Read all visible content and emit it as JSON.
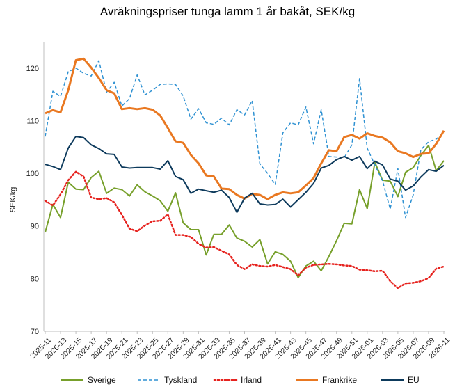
{
  "chart_data": {
    "type": "line",
    "title": "Avräkningspriser tunga lamm 1 år bakåt, SEK/kg",
    "ylabel": "SEK/kg",
    "xlabel": "",
    "ylim": [
      70,
      125
    ],
    "yticks": [
      70,
      80,
      90,
      100,
      110,
      120
    ],
    "grid": false,
    "legend_position": "bottom",
    "x": [
      "2025-11",
      "2025-12",
      "2025-13",
      "2025-14",
      "2025-15",
      "2025-16",
      "2025-17",
      "2025-18",
      "2025-19",
      "2025-20",
      "2025-21",
      "2025-22",
      "2025-23",
      "2025-24",
      "2025-25",
      "2025-26",
      "2025-27",
      "2025-28",
      "2025-29",
      "2025-30",
      "2025-31",
      "2025-32",
      "2025-33",
      "2025-34",
      "2025-35",
      "2025-36",
      "2025-37",
      "2025-38",
      "2025-39",
      "2025-40",
      "2025-41",
      "2025-42",
      "2025-43",
      "2025-44",
      "2025-45",
      "2025-46",
      "2025-47",
      "2025-48",
      "2025-49",
      "2025-50",
      "2025-51",
      "2025-52",
      "2026-01",
      "2026-02",
      "2026-03",
      "2026-04",
      "2026-05",
      "2026-06",
      "2026-07",
      "2026-08",
      "2026-09",
      "2026-10",
      "2026-11"
    ],
    "xtick_labels": [
      "2025-11",
      "2025-13",
      "2025-15",
      "2025-17",
      "2025-19",
      "2025-21",
      "2025-23",
      "2025-25",
      "2025-27",
      "2025-29",
      "2025-31",
      "2025-33",
      "2025-35",
      "2025-37",
      "2025-39",
      "2025-41",
      "2025-43",
      "2025-45",
      "2025-47",
      "2025-49",
      "2025-51",
      "2026-01",
      "2026-03",
      "2026-05",
      "2026-07",
      "2026-09",
      "2026-11"
    ],
    "series": [
      {
        "name": "Sverige",
        "color": "#77a02b",
        "style": "solid",
        "width": 2,
        "values": [
          88.8,
          94.1,
          91.6,
          98.3,
          97.0,
          96.9,
          99.2,
          100.4,
          96.2,
          97.2,
          96.9,
          95.7,
          97.8,
          96.5,
          95.7,
          94.8,
          92.8,
          96.3,
          90.6,
          89.3,
          89.3,
          84.5,
          88.4,
          88.4,
          90.2,
          87.7,
          87.1,
          86.0,
          87.4,
          82.8,
          85.1,
          84.6,
          83.3,
          80.2,
          82.4,
          83.3,
          81.5,
          84.2,
          87.2,
          90.5,
          90.4,
          96.9,
          93.3,
          102.1,
          98.7,
          98.5,
          95.6,
          100.2,
          101.1,
          103.4,
          105.3,
          100.5,
          102.4
        ]
      },
      {
        "name": "Tyskland",
        "color": "#2e91d2",
        "style": "dashed",
        "width": 1.5,
        "values": [
          107.0,
          115.6,
          114.6,
          119.3,
          120.0,
          119.0,
          118.5,
          121.4,
          115.4,
          117.3,
          112.8,
          114.2,
          118.7,
          114.9,
          115.8,
          116.9,
          117.0,
          116.9,
          114.7,
          110.3,
          112.3,
          109.6,
          109.3,
          110.5,
          109.2,
          112.1,
          111.1,
          113.8,
          101.8,
          100.0,
          97.9,
          107.7,
          109.6,
          109.2,
          112.6,
          105.6,
          112.1,
          103.2,
          103.1,
          103.0,
          105.4,
          118.0,
          104.8,
          101.6,
          98.6,
          93.2,
          100.9,
          91.6,
          95.9,
          104.5,
          106.0,
          106.5,
          107.7
        ]
      },
      {
        "name": "Irland",
        "color": "#e6221e",
        "style": "dotted",
        "width": 2.5,
        "values": [
          94.8,
          93.9,
          96.0,
          98.7,
          100.3,
          99.4,
          95.4,
          95.1,
          95.3,
          94.5,
          92.1,
          89.5,
          89.0,
          90.1,
          90.9,
          91.0,
          92.2,
          88.3,
          88.3,
          87.9,
          86.6,
          85.9,
          86.0,
          85.3,
          84.6,
          82.6,
          81.8,
          82.7,
          82.4,
          82.3,
          82.6,
          82.2,
          81.8,
          80.6,
          82.1,
          82.6,
          82.7,
          82.8,
          82.7,
          82.5,
          82.4,
          81.7,
          81.6,
          81.4,
          81.5,
          79.5,
          78.2,
          79.1,
          79.2,
          79.5,
          80.1,
          81.9,
          82.3
        ]
      },
      {
        "name": "Frankrike",
        "color": "#e97821",
        "style": "solid",
        "width": 3,
        "values": [
          111.4,
          112.0,
          111.6,
          115.8,
          121.5,
          121.8,
          120.1,
          118.1,
          115.8,
          115.2,
          112.2,
          112.4,
          112.2,
          112.4,
          112.1,
          111.0,
          108.6,
          106.1,
          105.8,
          103.5,
          101.9,
          99.6,
          99.4,
          97.1,
          97.0,
          95.9,
          95.2,
          96.1,
          95.9,
          95.1,
          95.9,
          96.4,
          96.2,
          96.4,
          97.7,
          99.1,
          101.9,
          104.4,
          104.2,
          106.9,
          107.3,
          106.6,
          107.6,
          107.1,
          106.8,
          105.9,
          104.2,
          103.8,
          103.1,
          103.7,
          103.8,
          105.6,
          108.1
        ]
      },
      {
        "name": "EU",
        "color": "#0d3a5c",
        "style": "solid",
        "width": 2,
        "values": [
          101.7,
          101.3,
          100.7,
          104.8,
          107.0,
          106.8,
          105.4,
          104.7,
          103.7,
          103.6,
          101.2,
          101.0,
          101.1,
          101.1,
          101.1,
          100.8,
          102.4,
          99.4,
          98.8,
          96.2,
          97.0,
          96.7,
          96.4,
          96.8,
          95.4,
          92.6,
          95.3,
          96.2,
          94.2,
          94.0,
          94.1,
          95.1,
          93.6,
          95.0,
          96.4,
          98.1,
          101.0,
          101.5,
          102.6,
          103.2,
          102.5,
          103.2,
          100.9,
          102.3,
          101.6,
          98.9,
          98.5,
          96.8,
          97.6,
          99.3,
          100.7,
          100.4,
          101.5
        ]
      }
    ]
  }
}
